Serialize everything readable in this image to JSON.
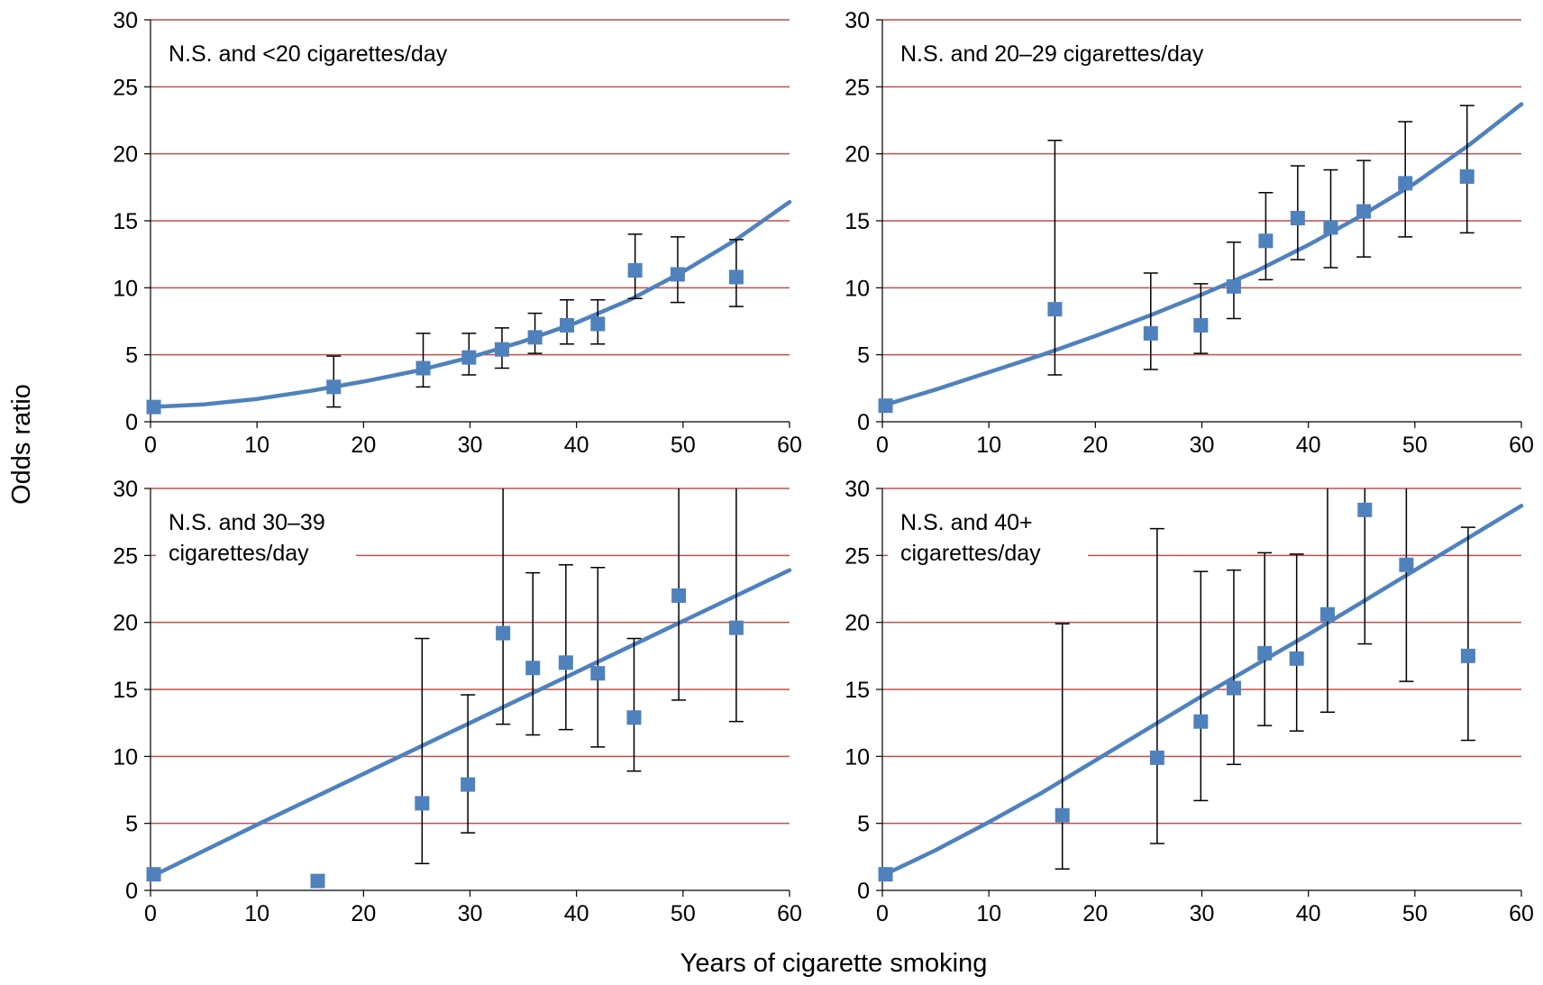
{
  "figure": {
    "ylabel": "Odds ratio",
    "xlabel": "Years of cigarette smoking"
  },
  "colors": {
    "grid": "#c0504d",
    "series": "#4f81bd",
    "error_bar": "#000000"
  },
  "chart_data": [
    {
      "type": "scatter",
      "title": "N.S. and <20 cigarettes/day",
      "title_lines": [
        "N.S. and <20 cigarettes/day"
      ],
      "xlim": [
        0,
        60
      ],
      "ylim": [
        0,
        30
      ],
      "x_ticks": [
        0,
        10,
        20,
        30,
        40,
        50,
        60
      ],
      "y_ticks": [
        0,
        5,
        10,
        15,
        20,
        25,
        30
      ],
      "grid": "horizontal",
      "points": [
        {
          "x": 0.3,
          "y": 1.1,
          "lo": null,
          "hi": null
        },
        {
          "x": 17.2,
          "y": 2.6,
          "lo": 1.1,
          "hi": 4.9
        },
        {
          "x": 25.6,
          "y": 4.0,
          "lo": 2.6,
          "hi": 6.6
        },
        {
          "x": 29.9,
          "y": 4.8,
          "lo": 3.5,
          "hi": 6.6
        },
        {
          "x": 33.0,
          "y": 5.4,
          "lo": 4.0,
          "hi": 7.0
        },
        {
          "x": 36.1,
          "y": 6.3,
          "lo": 5.1,
          "hi": 8.1
        },
        {
          "x": 39.1,
          "y": 7.2,
          "lo": 5.8,
          "hi": 9.1
        },
        {
          "x": 42.0,
          "y": 7.3,
          "lo": 5.8,
          "hi": 9.1
        },
        {
          "x": 45.5,
          "y": 11.3,
          "lo": 9.2,
          "hi": 14.0
        },
        {
          "x": 49.5,
          "y": 11.0,
          "lo": 8.9,
          "hi": 13.8
        },
        {
          "x": 55.0,
          "y": 10.8,
          "lo": 8.6,
          "hi": 13.6
        }
      ],
      "fit": {
        "x": [
          0,
          5,
          10,
          15,
          20,
          25,
          30,
          35,
          40,
          45,
          50,
          55,
          60
        ],
        "y": [
          1.1,
          1.3,
          1.7,
          2.3,
          3.0,
          3.8,
          4.8,
          6.0,
          7.4,
          9.1,
          11.2,
          13.6,
          16.4
        ]
      }
    },
    {
      "type": "scatter",
      "title": "N.S. and 20–29 cigarettes/day",
      "title_lines": [
        "N.S. and 20–29 cigarettes/day"
      ],
      "xlim": [
        0,
        60
      ],
      "ylim": [
        0,
        30
      ],
      "x_ticks": [
        0,
        10,
        20,
        30,
        40,
        50,
        60
      ],
      "y_ticks": [
        0,
        5,
        10,
        15,
        20,
        25,
        30
      ],
      "grid": "horizontal",
      "points": [
        {
          "x": 0.3,
          "y": 1.2,
          "lo": null,
          "hi": null
        },
        {
          "x": 16.2,
          "y": 8.4,
          "lo": 3.5,
          "hi": 21.0
        },
        {
          "x": 25.2,
          "y": 6.6,
          "lo": 3.9,
          "hi": 11.1
        },
        {
          "x": 29.9,
          "y": 7.2,
          "lo": 5.1,
          "hi": 10.3
        },
        {
          "x": 33.0,
          "y": 10.1,
          "lo": 7.7,
          "hi": 13.4
        },
        {
          "x": 36.0,
          "y": 13.5,
          "lo": 10.6,
          "hi": 17.1
        },
        {
          "x": 39.0,
          "y": 15.2,
          "lo": 12.1,
          "hi": 19.1
        },
        {
          "x": 42.1,
          "y": 14.5,
          "lo": 11.5,
          "hi": 18.8
        },
        {
          "x": 45.2,
          "y": 15.7,
          "lo": 12.3,
          "hi": 19.5
        },
        {
          "x": 49.1,
          "y": 17.8,
          "lo": 13.8,
          "hi": 22.4
        },
        {
          "x": 54.9,
          "y": 18.3,
          "lo": 14.1,
          "hi": 23.6
        }
      ],
      "fit": {
        "x": [
          0,
          5,
          10,
          15,
          20,
          25,
          30,
          35,
          40,
          45,
          50,
          55,
          60
        ],
        "y": [
          1.2,
          2.4,
          3.7,
          5.0,
          6.4,
          7.9,
          9.5,
          11.2,
          13.2,
          15.4,
          17.8,
          20.6,
          23.7
        ]
      }
    },
    {
      "type": "scatter",
      "title": "N.S. and 30–39 cigarettes/day",
      "title_lines": [
        "N.S. and 30–39",
        "cigarettes/day"
      ],
      "xlim": [
        0,
        60
      ],
      "ylim": [
        0,
        30
      ],
      "x_ticks": [
        0,
        10,
        20,
        30,
        40,
        50,
        60
      ],
      "y_ticks": [
        0,
        5,
        10,
        15,
        20,
        25,
        30
      ],
      "grid": "horizontal",
      "points": [
        {
          "x": 0.3,
          "y": 1.2,
          "lo": null,
          "hi": null
        },
        {
          "x": 15.7,
          "y": 0.7,
          "lo": null,
          "hi": null
        },
        {
          "x": 25.5,
          "y": 6.5,
          "lo": 2.0,
          "hi": 18.8
        },
        {
          "x": 29.8,
          "y": 7.9,
          "lo": 4.3,
          "hi": 14.6
        },
        {
          "x": 33.1,
          "y": 19.2,
          "lo": 12.4,
          "hi": 30.0
        },
        {
          "x": 35.9,
          "y": 16.6,
          "lo": 11.6,
          "hi": 23.7
        },
        {
          "x": 39.0,
          "y": 17.0,
          "lo": 12.0,
          "hi": 24.3
        },
        {
          "x": 42.0,
          "y": 16.2,
          "lo": 10.7,
          "hi": 24.1
        },
        {
          "x": 45.4,
          "y": 12.9,
          "lo": 8.9,
          "hi": 18.8
        },
        {
          "x": 49.6,
          "y": 22.0,
          "lo": 14.2,
          "hi": 30.0
        },
        {
          "x": 55.0,
          "y": 19.6,
          "lo": 12.6,
          "hi": 30.0
        }
      ],
      "fit": {
        "x": [
          0,
          10,
          20,
          30,
          40,
          50,
          60
        ],
        "y": [
          1.0,
          4.9,
          8.7,
          12.5,
          16.3,
          20.1,
          23.9
        ]
      }
    },
    {
      "type": "scatter",
      "title": "N.S. and 40+ cigarettes/day",
      "title_lines": [
        "N.S. and 40+",
        "cigarettes/day"
      ],
      "xlim": [
        0,
        60
      ],
      "ylim": [
        0,
        30
      ],
      "x_ticks": [
        0,
        10,
        20,
        30,
        40,
        50,
        60
      ],
      "y_ticks": [
        0,
        5,
        10,
        15,
        20,
        25,
        30
      ],
      "grid": "horizontal",
      "points": [
        {
          "x": 0.3,
          "y": 1.2,
          "lo": null,
          "hi": null
        },
        {
          "x": 16.9,
          "y": 5.6,
          "lo": 1.6,
          "hi": 19.9
        },
        {
          "x": 25.8,
          "y": 9.9,
          "lo": 3.5,
          "hi": 27.0
        },
        {
          "x": 29.9,
          "y": 12.6,
          "lo": 6.7,
          "hi": 23.8
        },
        {
          "x": 33.0,
          "y": 15.1,
          "lo": 9.4,
          "hi": 23.9
        },
        {
          "x": 35.9,
          "y": 17.7,
          "lo": 12.3,
          "hi": 25.2
        },
        {
          "x": 38.9,
          "y": 17.3,
          "lo": 11.9,
          "hi": 25.1
        },
        {
          "x": 41.8,
          "y": 20.6,
          "lo": 13.3,
          "hi": 30.0
        },
        {
          "x": 45.3,
          "y": 28.4,
          "lo": 18.4,
          "hi": 30.0
        },
        {
          "x": 49.2,
          "y": 24.3,
          "lo": 15.6,
          "hi": 30.0
        },
        {
          "x": 55.0,
          "y": 17.5,
          "lo": 11.2,
          "hi": 27.1
        }
      ],
      "fit": {
        "x": [
          0,
          5,
          10,
          15,
          20,
          25,
          30,
          35,
          40,
          45,
          50,
          55,
          60
        ],
        "y": [
          1.1,
          3.0,
          5.1,
          7.3,
          9.7,
          12.1,
          14.5,
          16.8,
          19.1,
          21.5,
          23.9,
          26.3,
          28.7
        ]
      }
    }
  ]
}
